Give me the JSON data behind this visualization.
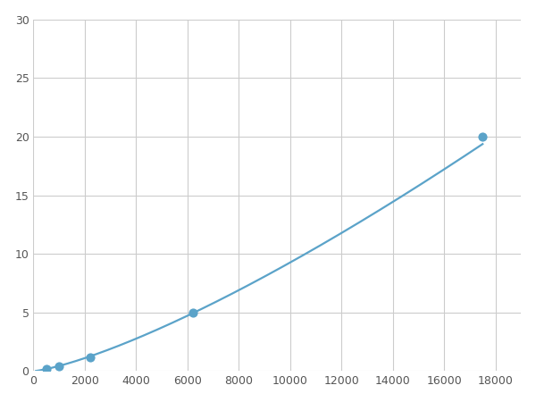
{
  "x_points": [
    500,
    1000,
    2200,
    6200,
    17500
  ],
  "y_points": [
    0.2,
    0.4,
    1.2,
    5.0,
    20.0
  ],
  "line_color": "#5ba3c9",
  "marker_color": "#5ba3c9",
  "marker_size": 6,
  "line_width": 1.6,
  "xlim": [
    0,
    19000
  ],
  "ylim": [
    0,
    30
  ],
  "xticks": [
    0,
    2000,
    4000,
    6000,
    8000,
    10000,
    12000,
    14000,
    16000,
    18000
  ],
  "yticks": [
    0,
    5,
    10,
    15,
    20,
    25,
    30
  ],
  "grid_color": "#cccccc",
  "bg_color": "#ffffff",
  "fig_bg_color": "#ffffff"
}
